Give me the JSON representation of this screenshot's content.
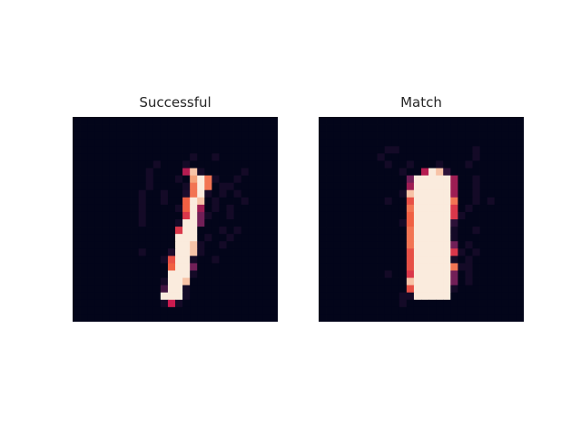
{
  "colors": {
    "background": "#ffffff",
    "colormap": "rocket",
    "low": "#03051a",
    "high": "#faebdd"
  },
  "chart_data": [
    {
      "type": "heatmap",
      "title": "Successful",
      "grid": false,
      "rows": 28,
      "cols": 28,
      "values": [
        "............................",
        "............................",
        "............................",
        "............................",
        "............................",
        "................a..a........",
        "...........a...a............",
        "..........a....9Ea.....a....",
        "..........a...a.RFOa..a.....",
        "..........a....aOFO.aa......",
        ".........a..a..bOFa.a.a.....",
        ".........a..a..NFE.a...a....",
        ".........a....aNF8.a.a......",
        ".........a.....GF6a..a......",
        ".........a....aFF6..........",
        "..............GFF...a.a.....",
        "..............FFF.a..a......",
        "..............FFEa..a.......",
        ".........a...bFFEa..........",
        "............aMFFa..a........",
        ".............NFF6...........",
        ".............FFFa...........",
        "............aFFE............",
        "............eFFa............",
        "............FFFa............",
        "............aAa.............",
        "............................",
        "............................"
      ]
    },
    {
      "type": "heatmap",
      "title": "Match",
      "grid": false,
      "rows": 28,
      "cols": 28,
      "values": [
        "............................",
        "............................",
        "............................",
        "............................",
        ".........aa..........a......",
        "........a............a......",
        ".........a..a...a...a.......",
        "...........a..9FEd..........",
        "............6FFFFF8..a......",
        "............8FFFFF8..a......",
        "...........aEFFFFF8..a......",
        ".........a..MFFFFFO..a.a....",
        "............OFFFFFG.a.......",
        "............NFFFFFGa........",
        "...........aNFFFFFd.........",
        "............OFFFFFa..a......",
        "............OFFFFFa.........",
        "............OFFFFF6.a.......",
        "............MFFFFFGa.a......",
        "............MFFFFFa.a.......",
        "............MFFFFFOaa.......",
        ".........a..GFFFFF6.a.......",
        "............EFFFFF6.a.......",
        "............MFFFFFa.........",
        "...........aaFFFFF..........",
        "...........a................",
        "............................",
        "............................"
      ]
    }
  ]
}
